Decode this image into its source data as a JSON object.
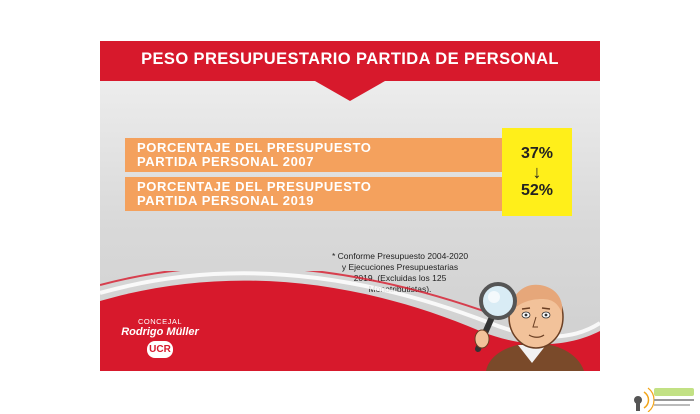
{
  "title": "PESO PRESUPUESTARIO PARTIDA DE PERSONAL",
  "rows": [
    {
      "line1": "PORCENTAJE DEL PRESUPUESTO",
      "line2": "PARTIDA PERSONAL 2007"
    },
    {
      "line1": "PORCENTAJE DEL PRESUPUESTO",
      "line2": "PARTIDA PERSONAL 2019"
    }
  ],
  "percentages": {
    "from": "37%",
    "to": "52%",
    "arrow_icon": "arrow-down-icon"
  },
  "footnote": {
    "line1": "* Conforme Presupuesto 2004-2020",
    "line2": "y Ejecuciones Presupuestarias",
    "line3": "2019. (Excluidas los 125",
    "line4": "Monotributistas)."
  },
  "brand": {
    "role": "CONCEJAL",
    "name": "Rodrigo Müller",
    "party": "UCR"
  },
  "colors": {
    "red": "#d7192c",
    "orange": "#f4a15d",
    "yellow": "#ffef1a",
    "grey": "#d9d9d9"
  }
}
